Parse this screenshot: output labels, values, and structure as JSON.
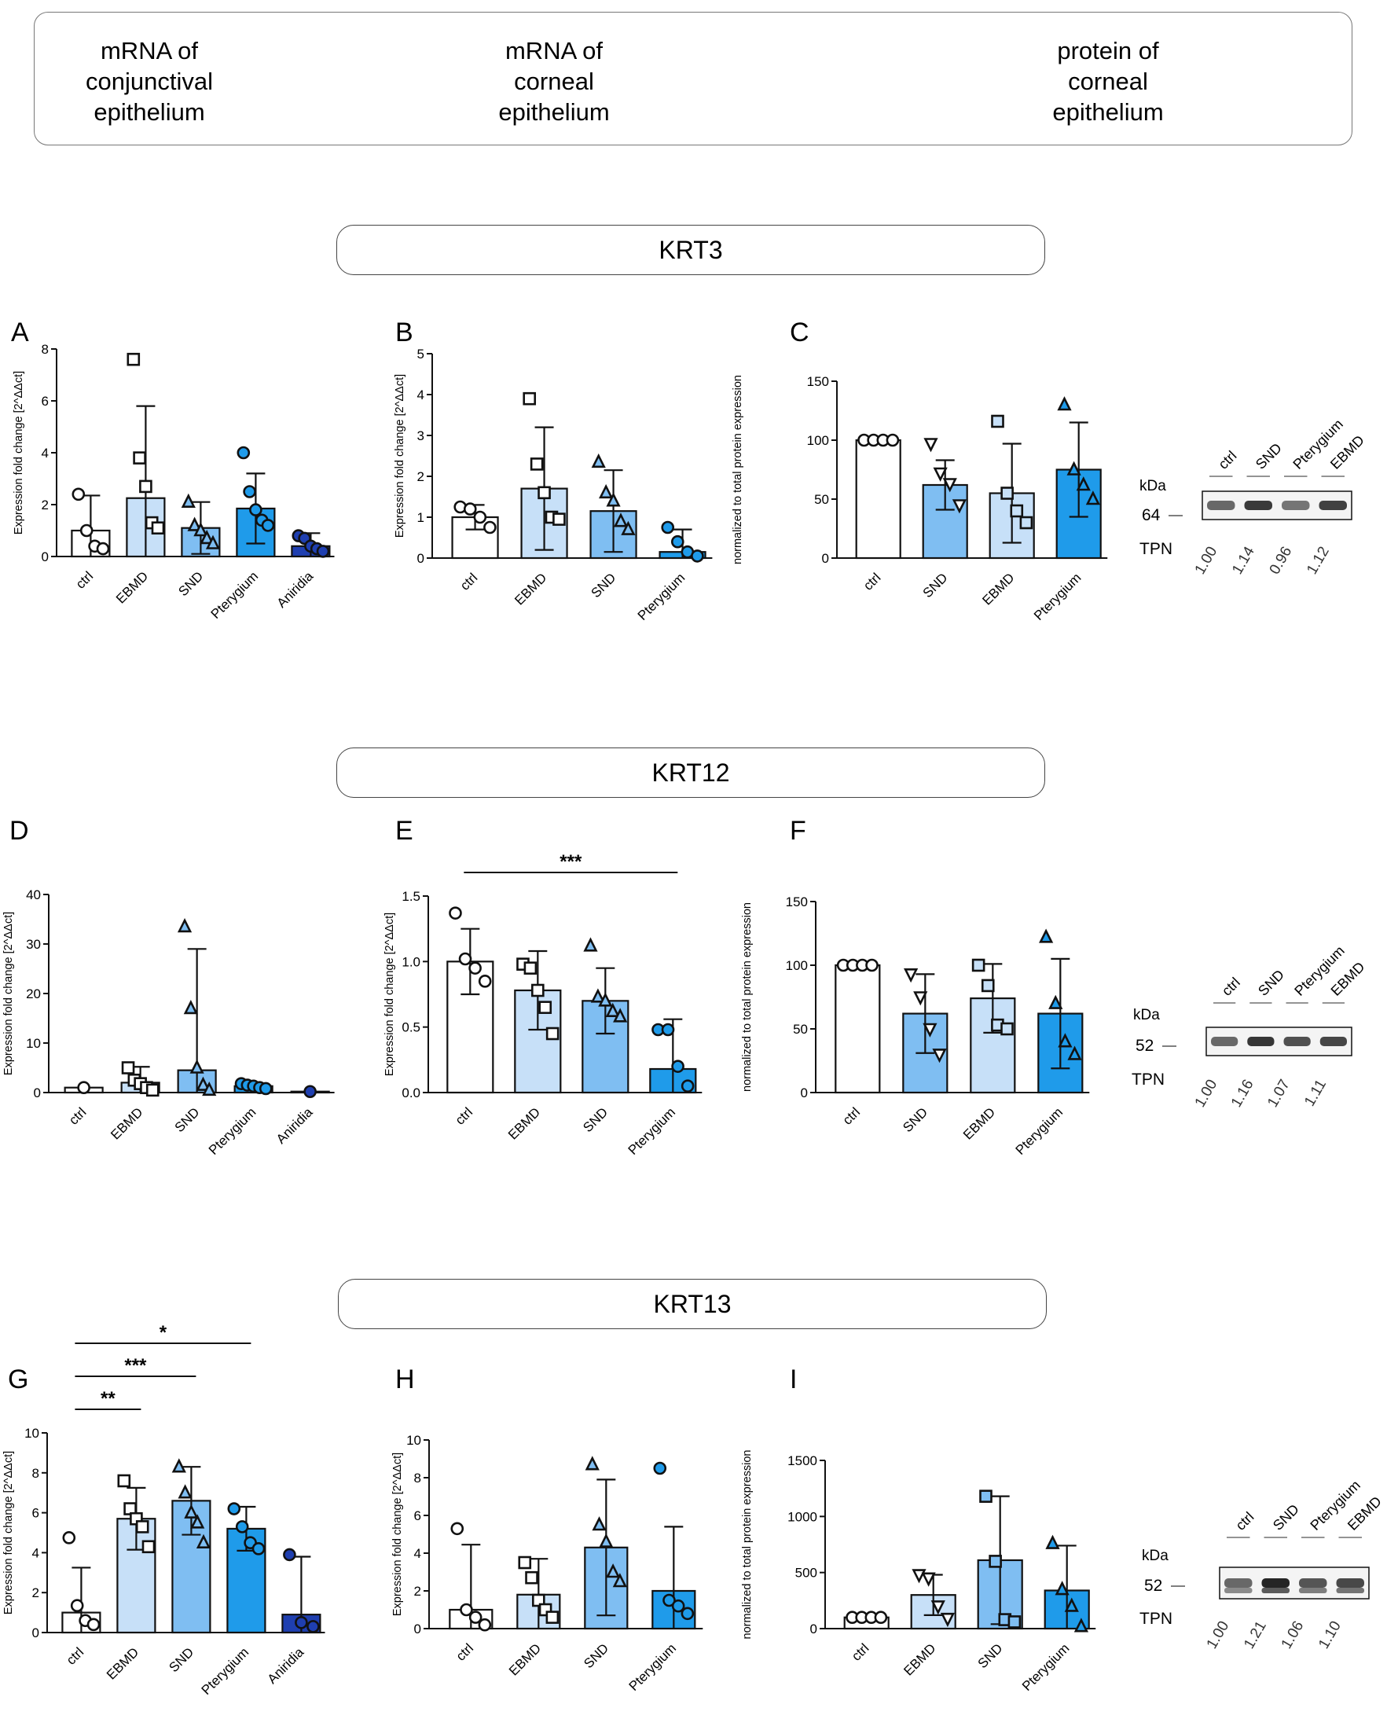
{
  "header": {
    "columns": [
      "mRNA of\nconjunctival\nepithelium",
      "mRNA of\ncorneal\nepithelium",
      "protein of\ncorneal\nepithelium"
    ]
  },
  "sections": [
    {
      "title": "KRT3"
    },
    {
      "title": "KRT12"
    },
    {
      "title": "KRT13"
    }
  ],
  "colors": {
    "ctrl": "#ffffff",
    "EBMD": "#c7e0f8",
    "SND": "#7fbef2",
    "Pterygium": "#1f9bea",
    "Aniridia": "#1f3fb0"
  },
  "chart_data": [
    {
      "panel": "A",
      "type": "bar",
      "ylabel": "Expression fold change [2^ΔΔct]",
      "ylim": [
        0,
        8
      ],
      "yticks": [
        0,
        2,
        4,
        6,
        8
      ],
      "categories": [
        "ctrl",
        "EBMD",
        "SND",
        "Pterygium",
        "Aniridia"
      ],
      "values": [
        1.0,
        2.25,
        1.1,
        1.85,
        0.4
      ],
      "errors": [
        1.35,
        3.55,
        1.0,
        1.35,
        0.5
      ],
      "points": [
        [
          2.4,
          1.0,
          0.4,
          0.3
        ],
        [
          7.6,
          3.8,
          2.7,
          1.3,
          1.1
        ],
        [
          2.1,
          1.2,
          1.0,
          0.7,
          0.5
        ],
        [
          4.0,
          2.5,
          1.8,
          1.4,
          1.2
        ],
        [
          0.8,
          0.7,
          0.4,
          0.3,
          0.2
        ]
      ],
      "markers": [
        "circle",
        "square",
        "triangle",
        "circle",
        "circle"
      ],
      "marker_filled": [
        false,
        false,
        true,
        true,
        true
      ],
      "significance": []
    },
    {
      "panel": "B",
      "type": "bar",
      "ylabel": "Expression fold change [2^ΔΔct]",
      "ylim": [
        0,
        5
      ],
      "yticks": [
        0,
        1,
        2,
        3,
        4,
        5
      ],
      "categories": [
        "ctrl",
        "EBMD",
        "SND",
        "Pterygium"
      ],
      "values": [
        1.0,
        1.7,
        1.15,
        0.15
      ],
      "errors": [
        0.3,
        1.5,
        1.0,
        0.55
      ],
      "points": [
        [
          1.25,
          1.2,
          1.0,
          0.75
        ],
        [
          3.9,
          2.3,
          1.6,
          1.0,
          0.95
        ],
        [
          2.35,
          1.6,
          1.4,
          0.9,
          0.7
        ],
        [
          0.75,
          0.4,
          0.15,
          0.05
        ]
      ],
      "markers": [
        "circle",
        "square",
        "triangle",
        "circle"
      ],
      "marker_filled": [
        false,
        false,
        true,
        true
      ],
      "significance": []
    },
    {
      "panel": "C",
      "type": "bar",
      "ylabel": "normalized to total protein expression",
      "ylim": [
        0,
        150
      ],
      "yticks": [
        0,
        50,
        100,
        150
      ],
      "categories": [
        "ctrl",
        "SND",
        "EBMD",
        "Pterygium"
      ],
      "values": [
        100,
        62,
        55,
        75
      ],
      "errors": [
        0,
        21,
        42,
        40
      ],
      "points": [
        [
          100,
          100,
          100,
          100
        ],
        [
          97,
          72,
          63,
          45
        ],
        [
          116,
          55,
          40,
          30
        ],
        [
          130,
          75,
          62,
          50
        ]
      ],
      "markers": [
        "circle",
        "triangle-down",
        "square",
        "triangle"
      ],
      "marker_filled": [
        false,
        false,
        true,
        true
      ],
      "significance": [],
      "blot": {
        "kda_label": "kDa",
        "kda": "64",
        "tpn_label": "TPN",
        "lanes": [
          "ctrl",
          "SND",
          "Pterygium",
          "EBMD"
        ],
        "values": [
          "1.00",
          "1.14",
          "0.96",
          "1.12"
        ]
      }
    },
    {
      "panel": "D",
      "type": "bar",
      "ylabel": "Expression fold change [2^ΔΔct]",
      "ylim": [
        0,
        40
      ],
      "yticks": [
        0,
        10,
        20,
        30,
        40
      ],
      "categories": [
        "ctrl",
        "EBMD",
        "SND",
        "Pterygium",
        "Aniridia"
      ],
      "values": [
        1.0,
        2.0,
        4.5,
        1.3,
        0.2
      ],
      "errors": [
        0,
        3.2,
        24.5,
        0.6,
        0
      ],
      "points": [
        [
          1.0
        ],
        [
          5.0,
          2.5,
          1.8,
          1.0,
          0.5
        ],
        [
          33.5,
          17,
          5.0,
          1.5,
          0.5
        ],
        [
          1.8,
          1.5,
          1.3,
          1.0,
          0.8
        ],
        [
          0.2
        ]
      ],
      "markers": [
        "circle",
        "square",
        "triangle",
        "circle",
        "circle"
      ],
      "marker_filled": [
        false,
        false,
        true,
        true,
        true
      ],
      "significance": []
    },
    {
      "panel": "E",
      "type": "bar",
      "ylabel": "Expression fold change [2^ΔΔct]",
      "ylim": [
        0,
        1.5
      ],
      "yticks": [
        "0.0",
        "0.5",
        "1.0",
        "1.5"
      ],
      "categories": [
        "ctrl",
        "EBMD",
        "SND",
        "Pterygium"
      ],
      "values": [
        1.0,
        0.78,
        0.7,
        0.18
      ],
      "errors": [
        0.25,
        0.3,
        0.25,
        0.38
      ],
      "points": [
        [
          1.37,
          1.02,
          0.95,
          0.85
        ],
        [
          0.98,
          0.95,
          0.78,
          0.65,
          0.45
        ],
        [
          1.12,
          0.73,
          0.7,
          0.62,
          0.58
        ],
        [
          0.48,
          0.48,
          0.2,
          0.05
        ]
      ],
      "markers": [
        "circle",
        "square",
        "triangle",
        "circle"
      ],
      "marker_filled": [
        false,
        false,
        true,
        true
      ],
      "significance": [
        {
          "label": "***",
          "from": 0,
          "to": 3
        }
      ]
    },
    {
      "panel": "F",
      "type": "bar",
      "ylabel": "normalized to total protein expression",
      "ylim": [
        0,
        150
      ],
      "yticks": [
        0,
        50,
        100,
        150
      ],
      "categories": [
        "ctrl",
        "SND",
        "EBMD",
        "Pterygium"
      ],
      "values": [
        100,
        62,
        74,
        62
      ],
      "errors": [
        0,
        31,
        27,
        43
      ],
      "points": [
        [
          100,
          100,
          100,
          100
        ],
        [
          93,
          75,
          50,
          30
        ],
        [
          100,
          84,
          53,
          50
        ],
        [
          122,
          70,
          40,
          30
        ]
      ],
      "markers": [
        "circle",
        "triangle-down",
        "square",
        "triangle"
      ],
      "marker_filled": [
        false,
        false,
        true,
        true
      ],
      "significance": [],
      "blot": {
        "kda_label": "kDa",
        "kda": "52",
        "tpn_label": "TPN",
        "lanes": [
          "ctrl",
          "SND",
          "Pterygium",
          "EBMD"
        ],
        "values": [
          "1.00",
          "1.16",
          "1.07",
          "1.11"
        ]
      }
    },
    {
      "panel": "G",
      "type": "bar",
      "ylabel": "Expression fold change [2^ΔΔct]",
      "ylim": [
        0,
        10
      ],
      "yticks": [
        0,
        2,
        4,
        6,
        8,
        10
      ],
      "categories": [
        "ctrl",
        "EBMD",
        "SND",
        "Pterygium",
        "Aniridia"
      ],
      "values": [
        1.0,
        5.7,
        6.6,
        5.2,
        0.9
      ],
      "errors": [
        2.25,
        1.55,
        1.7,
        1.1,
        2.9
      ],
      "points": [
        [
          4.75,
          1.35,
          0.6,
          0.4
        ],
        [
          7.6,
          6.2,
          5.7,
          5.3,
          4.3
        ],
        [
          8.3,
          7.0,
          6.0,
          5.5,
          4.5
        ],
        [
          6.2,
          5.3,
          4.5,
          4.2
        ],
        [
          3.9,
          0.5,
          0.3
        ]
      ],
      "markers": [
        "circle",
        "square",
        "triangle",
        "circle",
        "circle"
      ],
      "marker_filled": [
        false,
        false,
        true,
        true,
        true
      ],
      "significance": [
        {
          "label": "**",
          "from": 0,
          "to": 1
        },
        {
          "label": "***",
          "from": 0,
          "to": 2
        },
        {
          "label": "*",
          "from": 0,
          "to": 3
        }
      ]
    },
    {
      "panel": "H",
      "type": "bar",
      "ylabel": "Expression fold change [2^ΔΔct]",
      "ylim": [
        0,
        10
      ],
      "yticks": [
        0,
        2,
        4,
        6,
        8,
        10
      ],
      "categories": [
        "ctrl",
        "EBMD",
        "SND",
        "Pterygium"
      ],
      "values": [
        1.0,
        1.8,
        4.3,
        2.0
      ],
      "errors": [
        3.45,
        1.9,
        3.6,
        3.4
      ],
      "points": [
        [
          5.3,
          1.0,
          0.6,
          0.2
        ],
        [
          3.5,
          2.7,
          1.5,
          1.0,
          0.6
        ],
        [
          8.7,
          5.5,
          4.6,
          3.0,
          2.5
        ],
        [
          8.5,
          1.5,
          1.2,
          0.8
        ]
      ],
      "markers": [
        "circle",
        "square",
        "triangle",
        "circle"
      ],
      "marker_filled": [
        false,
        false,
        true,
        true
      ],
      "significance": []
    },
    {
      "panel": "I",
      "type": "bar",
      "ylabel": "normalized to total protein expression",
      "ylim": [
        0,
        1500
      ],
      "yticks": [
        0,
        500,
        1000,
        1500
      ],
      "categories": [
        "ctrl",
        "EBMD",
        "SND",
        "Pterygium"
      ],
      "values": [
        100,
        300,
        610,
        340
      ],
      "errors": [
        0,
        180,
        570,
        400
      ],
      "points": [
        [
          100,
          100,
          100,
          100
        ],
        [
          480,
          450,
          200,
          90
        ],
        [
          1180,
          600,
          80,
          60
        ],
        [
          760,
          350,
          200,
          20
        ]
      ],
      "markers": [
        "circle",
        "triangle-down",
        "square",
        "triangle"
      ],
      "marker_filled": [
        false,
        false,
        true,
        true
      ],
      "significance": [],
      "blot": {
        "kda_label": "kDa",
        "kda": "52",
        "tpn_label": "TPN",
        "lanes": [
          "ctrl",
          "SND",
          "Pterygium",
          "EBMD"
        ],
        "values": [
          "1.00",
          "1.21",
          "1.06",
          "1.10"
        ]
      }
    }
  ]
}
